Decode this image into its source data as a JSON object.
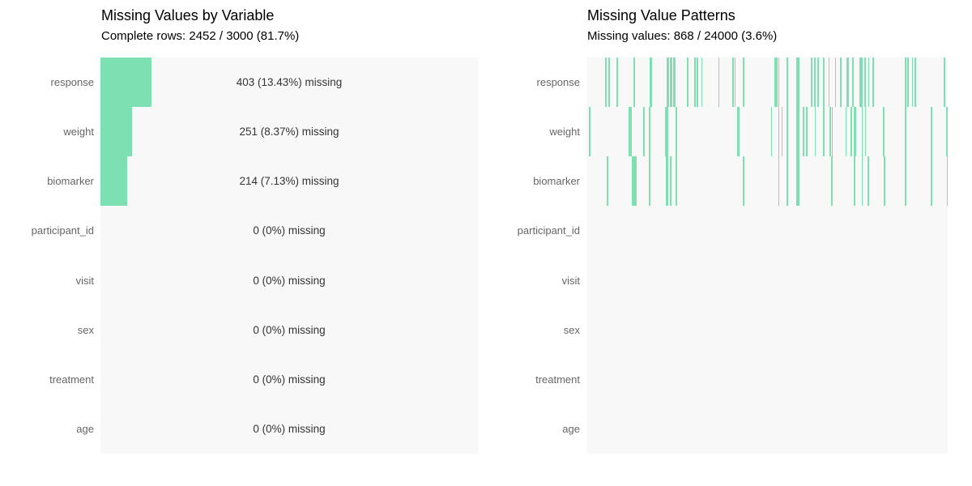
{
  "colors": {
    "missing_green": "#7ce0b2",
    "panel_background": "#f8f8f8",
    "label_gray": "#666666",
    "annotation_dark": "#333333",
    "title_black": "#000000"
  },
  "chart_data": [
    {
      "type": "bar",
      "orientation": "horizontal",
      "title": "Missing Values by Variable",
      "subtitle": "Complete rows: 2452 / 3000 (81.7%)",
      "categories": [
        "response",
        "weight",
        "biomarker",
        "participant_id",
        "visit",
        "sex",
        "treatment",
        "age"
      ],
      "missing_counts": [
        403,
        251,
        214,
        0,
        0,
        0,
        0,
        0
      ],
      "missing_pct": [
        13.43,
        8.37,
        7.13,
        0,
        0,
        0,
        0,
        0
      ],
      "annotations": [
        "403 (13.43%) missing",
        "251 (8.37%) missing",
        "214 (7.13%) missing",
        "0 (0%) missing",
        "0 (0%) missing",
        "0 (0%) missing",
        "0 (0%) missing",
        "0 (0%) missing"
      ],
      "xlim": [
        0,
        100
      ],
      "grid": false,
      "legend": false,
      "bar_color": "#7ce0b2"
    },
    {
      "type": "heatmap",
      "subtype": "missing-pattern-matrix",
      "title": "Missing Value Patterns",
      "subtitle": "Missing values: 868 / 24000 (3.6%)",
      "categories": [
        "response",
        "weight",
        "biomarker",
        "participant_id",
        "visit",
        "sex",
        "treatment",
        "age"
      ],
      "x_range_rows": [
        0,
        3000
      ],
      "tick_color": "#7ce0b2",
      "tick_positions": {
        "response": [
          0.052,
          0.061,
          0.083,
          0.13,
          0.175,
          0.179,
          0.222,
          0.226,
          0.231,
          0.235,
          0.24,
          0.244,
          0.278,
          0.298,
          0.305,
          0.318,
          0.365,
          0.404,
          0.41,
          0.433,
          0.52,
          0.525,
          0.531,
          0.554,
          0.581,
          0.585,
          0.621,
          0.63,
          0.639,
          0.655,
          0.67,
          0.688,
          0.702,
          0.72,
          0.724,
          0.736,
          0.756,
          0.76,
          0.769,
          0.78,
          0.792,
          0.881,
          0.888,
          0.901,
          0.908,
          0.989,
          0.999
        ],
        "weight": [
          0.007,
          0.117,
          0.121,
          0.157,
          0.173,
          0.218,
          0.222,
          0.247,
          0.417,
          0.42,
          0.511,
          0.531,
          0.54,
          0.554,
          0.581,
          0.585,
          0.599,
          0.608,
          0.632,
          0.655,
          0.673,
          0.679,
          0.717,
          0.731,
          0.74,
          0.744,
          0.762,
          0.771,
          0.821,
          0.881,
          0.953,
          0.996
        ],
        "biomarker": [
          0.056,
          0.126,
          0.13,
          0.135,
          0.173,
          0.22,
          0.224,
          0.231,
          0.247,
          0.433,
          0.531,
          0.554,
          0.581,
          0.585,
          0.677,
          0.74,
          0.762,
          0.778,
          0.823,
          0.881,
          0.953,
          0.998
        ],
        "participant_id": [],
        "visit": [],
        "sex": [],
        "treatment": [],
        "age": []
      }
    }
  ]
}
